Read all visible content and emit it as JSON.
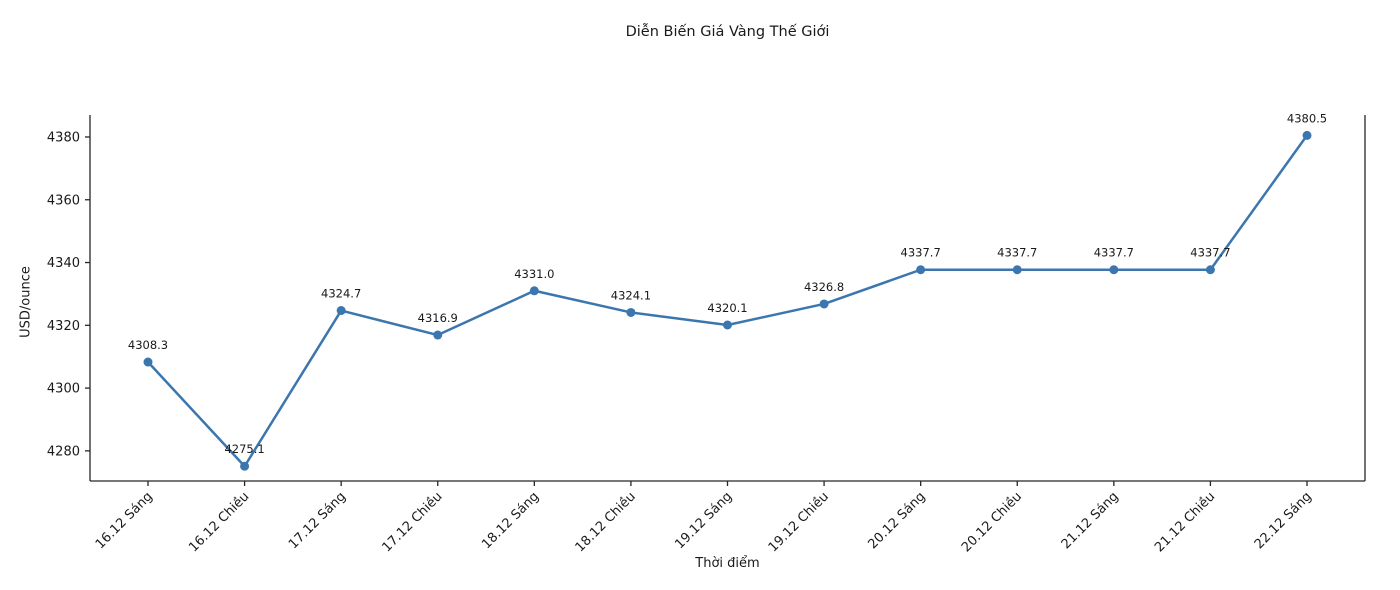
{
  "chart_data": {
    "type": "line",
    "title": "Diễn Biến Giá Vàng Thế Giới",
    "xlabel": "Thời điểm",
    "ylabel": "USD/ounce",
    "categories": [
      "16.12 Sáng",
      "16.12 Chiều",
      "17.12 Sáng",
      "17.12 Chiều",
      "18.12 Sáng",
      "18.12 Chiều",
      "19.12 Sáng",
      "19.12 Chiều",
      "20.12 Sáng",
      "20.12 Chiều",
      "21.12 Sáng",
      "21.12 Chiều",
      "22.12 Sáng"
    ],
    "values": [
      4308.3,
      4275.1,
      4324.7,
      4316.9,
      4331.0,
      4324.1,
      4320.1,
      4326.8,
      4337.7,
      4337.7,
      4337.7,
      4337.7,
      4380.5
    ],
    "point_labels": [
      "4308.3",
      "4275.1",
      "4324.7",
      "4316.9",
      "4331.0",
      "4324.1",
      "4320.1",
      "4326.8",
      "4337.7",
      "4337.7",
      "4337.7",
      "4337.7",
      "4380.5"
    ],
    "yticks": [
      4280,
      4300,
      4320,
      4340,
      4360,
      4380
    ],
    "ylim": [
      4270.4,
      4387.0
    ],
    "grid": false,
    "legend": null,
    "line_color": "#3b76af",
    "marker": "circle",
    "axis_color": "#262626",
    "text_color": "#1a1a1a"
  }
}
